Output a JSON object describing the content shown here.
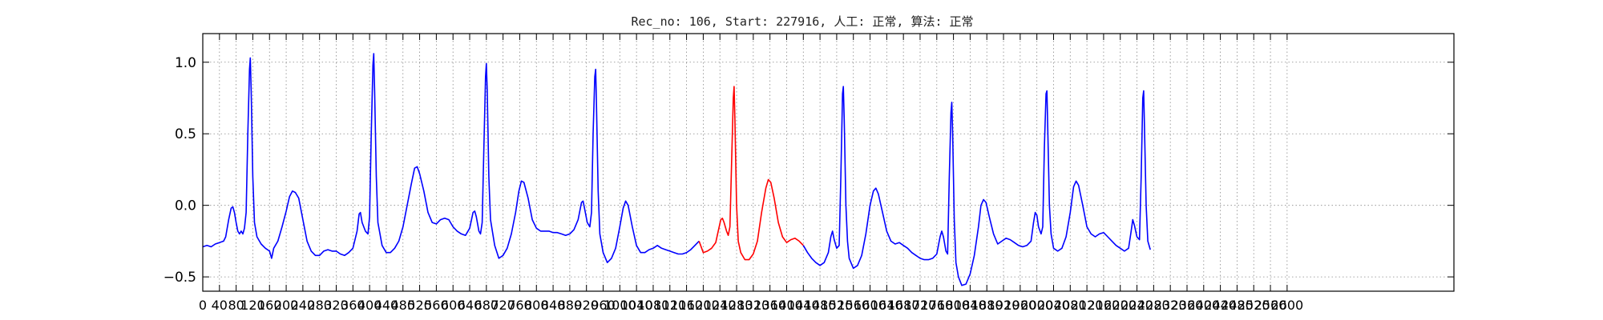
{
  "chart_data": {
    "type": "line",
    "title": "Rec_no: 106, Start: 227916, 人工: 正常, 算法: 正常",
    "xlabel": "",
    "ylabel": "",
    "xlim": [
      0,
      3000
    ],
    "ylim": [
      -0.6,
      1.2
    ],
    "grid": true,
    "y_ticks": [
      -0.5,
      0.0,
      0.5,
      1.0
    ],
    "y_tick_labels": [
      "−0.5",
      "0.0",
      "0.5",
      "1.0"
    ],
    "x_ticks": [
      0,
      40,
      80,
      120,
      160,
      200,
      240,
      280,
      320,
      360,
      400,
      440,
      480,
      520,
      560,
      600,
      640,
      680,
      720,
      760,
      800,
      840,
      880,
      920,
      960,
      1000,
      1040,
      1080,
      1120,
      1160,
      1200,
      1240,
      1280,
      1320,
      1360,
      1400,
      1440,
      1480,
      1520,
      1560,
      1600,
      1640,
      1680,
      1720,
      1760,
      1800,
      1840,
      1880,
      1920,
      1960,
      2000,
      2040,
      2080,
      2120,
      2160,
      2200,
      2240,
      2280,
      2320,
      2360,
      2400,
      2440,
      2480,
      2520,
      2560,
      2600
    ],
    "colors": {
      "normal": "#0000ff",
      "highlight": "#ff0000"
    },
    "highlight_range": [
      1200,
      1440
    ],
    "series": [
      {
        "points": [
          [
            0,
            -0.29
          ],
          [
            10,
            -0.28
          ],
          [
            20,
            -0.29
          ],
          [
            30,
            -0.27
          ],
          [
            40,
            -0.26
          ],
          [
            50,
            -0.25
          ],
          [
            55,
            -0.22
          ],
          [
            62,
            -0.1
          ],
          [
            68,
            -0.02
          ],
          [
            72,
            -0.01
          ],
          [
            76,
            -0.05
          ],
          [
            80,
            -0.12
          ],
          [
            84,
            -0.18
          ],
          [
            88,
            -0.2
          ],
          [
            92,
            -0.18
          ],
          [
            96,
            -0.2
          ],
          [
            100,
            -0.16
          ],
          [
            104,
            -0.05
          ],
          [
            108,
            0.5
          ],
          [
            112,
            0.95
          ],
          [
            114,
            1.03
          ],
          [
            116,
            0.8
          ],
          [
            120,
            0.2
          ],
          [
            124,
            -0.12
          ],
          [
            130,
            -0.22
          ],
          [
            140,
            -0.27
          ],
          [
            150,
            -0.3
          ],
          [
            160,
            -0.32
          ],
          [
            165,
            -0.37
          ],
          [
            170,
            -0.3
          ],
          [
            180,
            -0.25
          ],
          [
            190,
            -0.15
          ],
          [
            200,
            -0.04
          ],
          [
            208,
            0.06
          ],
          [
            215,
            0.1
          ],
          [
            222,
            0.09
          ],
          [
            230,
            0.05
          ],
          [
            240,
            -0.1
          ],
          [
            250,
            -0.25
          ],
          [
            260,
            -0.32
          ],
          [
            270,
            -0.35
          ],
          [
            280,
            -0.35
          ],
          [
            290,
            -0.32
          ],
          [
            300,
            -0.31
          ],
          [
            310,
            -0.32
          ],
          [
            320,
            -0.32
          ],
          [
            330,
            -0.34
          ],
          [
            340,
            -0.35
          ],
          [
            350,
            -0.33
          ],
          [
            360,
            -0.3
          ],
          [
            370,
            -0.18
          ],
          [
            375,
            -0.06
          ],
          [
            378,
            -0.05
          ],
          [
            382,
            -0.12
          ],
          [
            390,
            -0.18
          ],
          [
            396,
            -0.2
          ],
          [
            400,
            -0.08
          ],
          [
            404,
            0.5
          ],
          [
            408,
            0.98
          ],
          [
            410,
            1.06
          ],
          [
            412,
            0.8
          ],
          [
            416,
            0.2
          ],
          [
            420,
            -0.12
          ],
          [
            430,
            -0.28
          ],
          [
            440,
            -0.33
          ],
          [
            450,
            -0.33
          ],
          [
            460,
            -0.3
          ],
          [
            470,
            -0.25
          ],
          [
            480,
            -0.15
          ],
          [
            490,
            0.0
          ],
          [
            500,
            0.15
          ],
          [
            508,
            0.26
          ],
          [
            514,
            0.27
          ],
          [
            520,
            0.22
          ],
          [
            530,
            0.1
          ],
          [
            540,
            -0.05
          ],
          [
            550,
            -0.12
          ],
          [
            560,
            -0.13
          ],
          [
            570,
            -0.1
          ],
          [
            580,
            -0.09
          ],
          [
            590,
            -0.1
          ],
          [
            600,
            -0.15
          ],
          [
            610,
            -0.18
          ],
          [
            620,
            -0.2
          ],
          [
            630,
            -0.21
          ],
          [
            640,
            -0.16
          ],
          [
            648,
            -0.05
          ],
          [
            652,
            -0.04
          ],
          [
            656,
            -0.08
          ],
          [
            662,
            -0.18
          ],
          [
            666,
            -0.2
          ],
          [
            670,
            -0.12
          ],
          [
            674,
            0.4
          ],
          [
            678,
            0.9
          ],
          [
            680,
            0.99
          ],
          [
            682,
            0.8
          ],
          [
            686,
            0.2
          ],
          [
            690,
            -0.1
          ],
          [
            700,
            -0.28
          ],
          [
            710,
            -0.37
          ],
          [
            720,
            -0.35
          ],
          [
            730,
            -0.3
          ],
          [
            740,
            -0.2
          ],
          [
            750,
            -0.05
          ],
          [
            758,
            0.1
          ],
          [
            764,
            0.17
          ],
          [
            770,
            0.16
          ],
          [
            780,
            0.05
          ],
          [
            790,
            -0.1
          ],
          [
            800,
            -0.16
          ],
          [
            810,
            -0.18
          ],
          [
            820,
            -0.18
          ],
          [
            830,
            -0.18
          ],
          [
            840,
            -0.19
          ],
          [
            850,
            -0.19
          ],
          [
            860,
            -0.2
          ],
          [
            870,
            -0.21
          ],
          [
            880,
            -0.2
          ],
          [
            890,
            -0.17
          ],
          [
            900,
            -0.1
          ],
          [
            908,
            0.02
          ],
          [
            912,
            0.03
          ],
          [
            916,
            -0.03
          ],
          [
            922,
            -0.12
          ],
          [
            928,
            -0.15
          ],
          [
            932,
            -0.05
          ],
          [
            936,
            0.5
          ],
          [
            940,
            0.9
          ],
          [
            942,
            0.95
          ],
          [
            944,
            0.7
          ],
          [
            948,
            0.1
          ],
          [
            952,
            -0.2
          ],
          [
            960,
            -0.33
          ],
          [
            970,
            -0.4
          ],
          [
            980,
            -0.37
          ],
          [
            990,
            -0.3
          ],
          [
            1000,
            -0.15
          ],
          [
            1008,
            -0.02
          ],
          [
            1014,
            0.03
          ],
          [
            1020,
            0.0
          ],
          [
            1030,
            -0.15
          ],
          [
            1040,
            -0.28
          ],
          [
            1050,
            -0.33
          ],
          [
            1060,
            -0.33
          ],
          [
            1070,
            -0.31
          ],
          [
            1080,
            -0.3
          ],
          [
            1090,
            -0.28
          ],
          [
            1100,
            -0.3
          ],
          [
            1110,
            -0.31
          ],
          [
            1120,
            -0.32
          ],
          [
            1130,
            -0.33
          ],
          [
            1140,
            -0.34
          ],
          [
            1150,
            -0.34
          ],
          [
            1160,
            -0.33
          ],
          [
            1170,
            -0.31
          ],
          [
            1180,
            -0.28
          ],
          [
            1190,
            -0.25
          ],
          [
            1200,
            -0.33
          ],
          [
            1210,
            -0.32
          ],
          [
            1220,
            -0.3
          ],
          [
            1230,
            -0.26
          ],
          [
            1236,
            -0.18
          ],
          [
            1242,
            -0.1
          ],
          [
            1246,
            -0.09
          ],
          [
            1250,
            -0.12
          ],
          [
            1256,
            -0.18
          ],
          [
            1260,
            -0.21
          ],
          [
            1264,
            -0.15
          ],
          [
            1268,
            0.3
          ],
          [
            1272,
            0.75
          ],
          [
            1274,
            0.83
          ],
          [
            1276,
            0.6
          ],
          [
            1280,
            0.0
          ],
          [
            1284,
            -0.25
          ],
          [
            1290,
            -0.33
          ],
          [
            1300,
            -0.38
          ],
          [
            1310,
            -0.38
          ],
          [
            1320,
            -0.34
          ],
          [
            1330,
            -0.25
          ],
          [
            1340,
            -0.05
          ],
          [
            1350,
            0.12
          ],
          [
            1356,
            0.18
          ],
          [
            1362,
            0.16
          ],
          [
            1370,
            0.05
          ],
          [
            1380,
            -0.12
          ],
          [
            1390,
            -0.22
          ],
          [
            1400,
            -0.26
          ],
          [
            1410,
            -0.24
          ],
          [
            1420,
            -0.23
          ],
          [
            1430,
            -0.25
          ],
          [
            1440,
            -0.28
          ],
          [
            1450,
            -0.33
          ],
          [
            1460,
            -0.37
          ],
          [
            1470,
            -0.4
          ],
          [
            1480,
            -0.42
          ],
          [
            1490,
            -0.4
          ],
          [
            1500,
            -0.33
          ],
          [
            1506,
            -0.22
          ],
          [
            1510,
            -0.18
          ],
          [
            1514,
            -0.24
          ],
          [
            1520,
            -0.3
          ],
          [
            1526,
            -0.28
          ],
          [
            1530,
            0.2
          ],
          [
            1534,
            0.78
          ],
          [
            1536,
            0.83
          ],
          [
            1538,
            0.6
          ],
          [
            1542,
            0.0
          ],
          [
            1546,
            -0.25
          ],
          [
            1550,
            -0.37
          ],
          [
            1560,
            -0.44
          ],
          [
            1570,
            -0.42
          ],
          [
            1580,
            -0.35
          ],
          [
            1590,
            -0.2
          ],
          [
            1600,
            0.0
          ],
          [
            1608,
            0.1
          ],
          [
            1614,
            0.12
          ],
          [
            1620,
            0.08
          ],
          [
            1630,
            -0.05
          ],
          [
            1640,
            -0.18
          ],
          [
            1650,
            -0.25
          ],
          [
            1660,
            -0.27
          ],
          [
            1670,
            -0.26
          ],
          [
            1680,
            -0.28
          ],
          [
            1690,
            -0.3
          ],
          [
            1700,
            -0.33
          ],
          [
            1710,
            -0.35
          ],
          [
            1720,
            -0.37
          ],
          [
            1730,
            -0.38
          ],
          [
            1740,
            -0.38
          ],
          [
            1750,
            -0.37
          ],
          [
            1760,
            -0.34
          ],
          [
            1768,
            -0.22
          ],
          [
            1772,
            -0.18
          ],
          [
            1776,
            -0.22
          ],
          [
            1782,
            -0.32
          ],
          [
            1786,
            -0.34
          ],
          [
            1790,
            0.2
          ],
          [
            1794,
            0.65
          ],
          [
            1796,
            0.72
          ],
          [
            1798,
            0.5
          ],
          [
            1802,
            -0.1
          ],
          [
            1806,
            -0.4
          ],
          [
            1812,
            -0.5
          ],
          [
            1820,
            -0.56
          ],
          [
            1830,
            -0.55
          ],
          [
            1840,
            -0.48
          ],
          [
            1850,
            -0.35
          ],
          [
            1860,
            -0.15
          ],
          [
            1866,
            0.0
          ],
          [
            1872,
            0.04
          ],
          [
            1878,
            0.02
          ],
          [
            1886,
            -0.08
          ],
          [
            1896,
            -0.2
          ],
          [
            1906,
            -0.27
          ],
          [
            1916,
            -0.25
          ],
          [
            1926,
            -0.23
          ],
          [
            1936,
            -0.24
          ],
          [
            1946,
            -0.26
          ],
          [
            1956,
            -0.28
          ],
          [
            1966,
            -0.29
          ],
          [
            1976,
            -0.28
          ],
          [
            1986,
            -0.25
          ],
          [
            1992,
            -0.12
          ],
          [
            1996,
            -0.05
          ],
          [
            2000,
            -0.07
          ],
          [
            2004,
            -0.15
          ],
          [
            2010,
            -0.2
          ],
          [
            2014,
            -0.15
          ],
          [
            2018,
            0.4
          ],
          [
            2022,
            0.78
          ],
          [
            2024,
            0.8
          ],
          [
            2026,
            0.55
          ],
          [
            2030,
            0.0
          ],
          [
            2034,
            -0.2
          ],
          [
            2040,
            -0.3
          ],
          [
            2050,
            -0.32
          ],
          [
            2060,
            -0.3
          ],
          [
            2070,
            -0.22
          ],
          [
            2080,
            -0.05
          ],
          [
            2088,
            0.13
          ],
          [
            2094,
            0.17
          ],
          [
            2100,
            0.14
          ],
          [
            2110,
            0.0
          ],
          [
            2120,
            -0.15
          ],
          [
            2130,
            -0.2
          ],
          [
            2140,
            -0.22
          ],
          [
            2150,
            -0.2
          ],
          [
            2160,
            -0.19
          ],
          [
            2170,
            -0.22
          ],
          [
            2180,
            -0.25
          ],
          [
            2190,
            -0.28
          ],
          [
            2200,
            -0.3
          ],
          [
            2210,
            -0.32
          ],
          [
            2220,
            -0.3
          ],
          [
            2226,
            -0.18
          ],
          [
            2230,
            -0.1
          ],
          [
            2234,
            -0.14
          ],
          [
            2240,
            -0.22
          ],
          [
            2246,
            -0.24
          ],
          [
            2250,
            0.2
          ],
          [
            2254,
            0.75
          ],
          [
            2256,
            0.8
          ],
          [
            2258,
            0.55
          ],
          [
            2262,
            0.0
          ],
          [
            2266,
            -0.25
          ],
          [
            2272,
            -0.31
          ]
        ]
      }
    ]
  }
}
